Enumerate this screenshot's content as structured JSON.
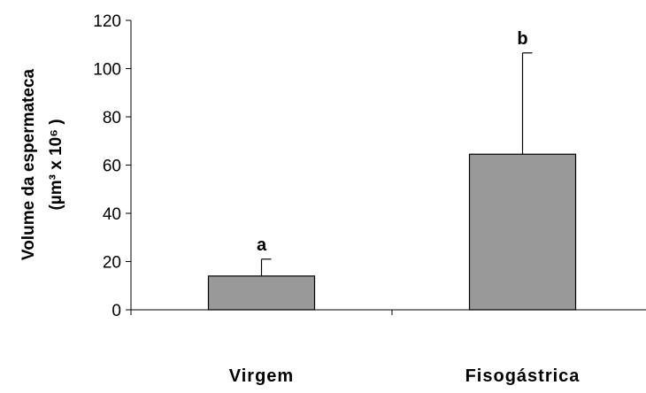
{
  "chart_data": {
    "type": "bar",
    "title": "",
    "categories": [
      "Virgem",
      "Fisogástrica"
    ],
    "values": [
      14,
      64.5
    ],
    "error_upper": [
      21,
      106.5
    ],
    "significance_letters": [
      "a",
      "b"
    ],
    "ylabel_line1": "Volume da espermateca",
    "ylabel_line2": "(µm³ x 10⁶ )",
    "ylim": [
      0,
      120
    ],
    "yticks": [
      "0",
      "20",
      "40",
      "60",
      "80",
      "100",
      "120"
    ],
    "ytick_values": [
      0,
      20,
      40,
      60,
      80,
      100,
      120
    ],
    "bar_color": "#999999",
    "grid": false,
    "legend": "none"
  }
}
